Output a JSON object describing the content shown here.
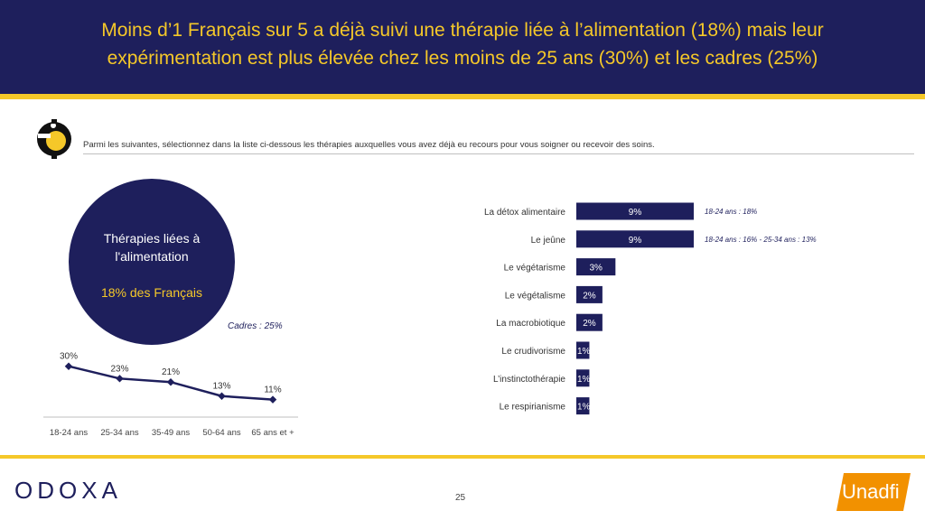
{
  "header": {
    "title_line1": "Moins d’1 Français sur 5 a déjà suivi une thérapie liée à l’alimentation (18%) mais leur",
    "title_line2": "expérimentation est plus élevée chez les moins de 25 ans (30%) et les cadres (25%)"
  },
  "question": "Parmi les suivantes, sélectionnez dans la liste ci-dessous les thérapies auxquelles vous avez déjà eu recours pour vous soigner ou recevoir des soins.",
  "summary": {
    "label_line1": "Thérapies liées à",
    "label_line2": "l'alimentation",
    "value": "18% des Français",
    "cadres_note": "Cadres : 25%"
  },
  "colors": {
    "navy": "#1e1f5c",
    "yellow": "#f5c829",
    "partner_orange": "#f29100"
  },
  "chart_data": [
    {
      "type": "line",
      "categories": [
        "18-24 ans",
        "25-34 ans",
        "35-49 ans",
        "50-64 ans",
        "65 ans et +"
      ],
      "values": [
        30,
        23,
        21,
        13,
        11
      ],
      "value_labels": [
        "30%",
        "23%",
        "21%",
        "13%",
        "11%"
      ],
      "ylim": [
        0,
        35
      ]
    },
    {
      "type": "bar",
      "orientation": "horizontal",
      "categories": [
        "La détox alimentaire",
        "Le jeûne",
        "Le végétarisme",
        "Le végétalisme",
        "La macrobiotique",
        "Le crudivorisme",
        "L’instinctothérapie",
        "Le respirianisme"
      ],
      "values": [
        9,
        9,
        3,
        2,
        2,
        1,
        1,
        1
      ],
      "value_labels": [
        "9%",
        "9%",
        "3%",
        "2%",
        "2%",
        "1%",
        "1%",
        "1%"
      ],
      "annotations": [
        "18-24 ans : 18%",
        "18-24 ans : 16% - 25-34 ans : 13%",
        "",
        "",
        "",
        "",
        "",
        ""
      ],
      "xlim": [
        0,
        9
      ]
    }
  ],
  "footer": {
    "brand": "ODOXA",
    "page_number": "25",
    "partner": "Unadfi"
  }
}
